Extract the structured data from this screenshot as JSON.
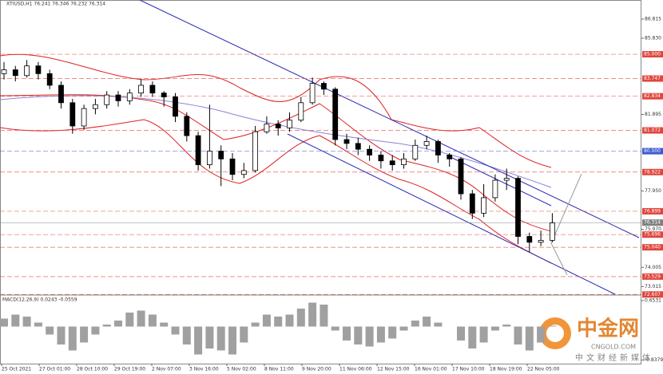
{
  "chart_data": {
    "type": "candlestick",
    "title": "XTIUSD,H1  76.241 76.346 76.232 76.314",
    "ylim": [
      72.7,
      87.8
    ],
    "yticks": [
      86.815,
      {
        "value": 85.83,
        "label": "85.830"
      },
      81.895,
      {
        "value": 77.95,
        "label": "77.950"
      },
      {
        "value": 75.97,
        "label": "75.970"
      },
      74.005,
      73.015
    ],
    "levels": [
      {
        "value": 85,
        "label": "85.000",
        "color": "#e0463c"
      },
      {
        "value": 83.747,
        "label": "83.747",
        "color": "#e0463c"
      },
      {
        "value": 82.834,
        "label": "82.834",
        "color": "#e0463c"
      },
      {
        "value": 81.072,
        "label": "81.072",
        "color": "#e0463c"
      },
      {
        "value": 80,
        "label": "80.000",
        "color": "#3c5ad2"
      },
      {
        "value": 78.922,
        "label": "78.922",
        "color": "#e0463c"
      },
      {
        "value": 76.899,
        "label": "76.899",
        "color": "#e0463c"
      },
      {
        "value": 76.314,
        "label": "76.314",
        "color": "#808080"
      },
      {
        "value": 75.696,
        "label": "75.696",
        "color": "#e0463c"
      },
      {
        "value": 75.04,
        "label": "75.040",
        "color": "#e0463c"
      },
      {
        "value": 73.529,
        "label": "73.529",
        "color": "#e0463c"
      },
      {
        "value": 72.607,
        "label": "72.607",
        "color": "#e0463c"
      }
    ],
    "open": [
      84.0,
      84.2,
      83.9,
      84.4,
      84.0,
      83.4,
      82.5,
      81.3,
      82.2,
      82.4,
      82.9,
      82.6,
      83.0,
      83.4,
      83.0,
      82.8,
      81.8,
      80.8,
      79.3,
      80.0,
      79.6,
      78.8,
      79.0,
      81.0,
      81.4,
      81.2,
      81.6,
      82.5,
      83.5,
      83.2,
      80.6,
      80.4,
      80.1,
      79.8,
      79.5,
      79.3,
      79.6,
      80.3,
      80.5,
      79.8,
      79.6,
      77.8,
      76.8,
      77.6,
      78.5,
      78.6,
      75.6,
      75.3,
      75.4
    ],
    "high": [
      84.6,
      84.4,
      84.7,
      84.6,
      84.2,
      83.6,
      82.7,
      82.4,
      82.7,
      83.1,
      83.1,
      83.2,
      83.7,
      83.6,
      83.1,
      83.0,
      82.0,
      81.0,
      82.4,
      80.3,
      79.9,
      79.4,
      81.3,
      81.8,
      81.6,
      82.0,
      82.8,
      83.8,
      83.6,
      83.3,
      80.9,
      80.7,
      80.3,
      80.0,
      79.8,
      79.9,
      80.6,
      80.8,
      80.6,
      79.9,
      79.7,
      78.0,
      78.3,
      78.8,
      79.1,
      78.7,
      75.8,
      75.9,
      76.8
    ],
    "low": [
      83.7,
      83.6,
      83.8,
      83.7,
      83.2,
      82.2,
      80.9,
      81.1,
      81.9,
      82.2,
      82.3,
      82.4,
      82.8,
      82.8,
      82.3,
      81.5,
      80.5,
      79.0,
      79.1,
      78.2,
      78.5,
      78.6,
      78.9,
      80.9,
      80.8,
      81.0,
      81.5,
      82.4,
      82.9,
      80.3,
      80.1,
      79.8,
      79.5,
      79.1,
      79.0,
      79.1,
      79.5,
      80.1,
      79.4,
      79.2,
      77.5,
      76.5,
      76.6,
      77.4,
      78.0,
      75.2,
      74.8,
      75.1,
      75.3
    ],
    "close": [
      84.2,
      83.9,
      84.4,
      84.0,
      83.4,
      82.5,
      81.3,
      82.2,
      82.4,
      82.9,
      82.6,
      83.0,
      83.4,
      83.0,
      82.8,
      81.8,
      80.8,
      79.3,
      80.0,
      79.6,
      78.8,
      79.0,
      81.0,
      81.4,
      81.2,
      81.6,
      82.5,
      83.5,
      83.2,
      80.6,
      80.4,
      80.1,
      79.8,
      79.5,
      79.3,
      79.6,
      80.3,
      80.5,
      79.8,
      79.6,
      77.8,
      76.8,
      77.6,
      78.5,
      78.6,
      75.6,
      75.3,
      75.4,
      76.3
    ],
    "categories": [
      "25 Oct 2021",
      "27 Oct 01:00",
      "28 Oct 10:00",
      "29 Oct 19:00",
      "2 Nov 07:00",
      "3 Nov 16:00",
      "5 Nov 02:00",
      "8 Nov 11:00",
      "9 Nov 20:00",
      "11 Nov 06:00",
      "12 Nov 15:00",
      "16 Nov 01:00",
      "17 Nov 10:00",
      "18 Nov 19:00",
      "22 Nov 05:00"
    ],
    "macd": {
      "title": "MACD(12,26,9) 0.0243 -0.0559",
      "ylim": [
        -0.93,
        0.75
      ],
      "yticks": [
        0.6531,
        -0.8379
      ],
      "color": "#a0a0a0",
      "values": [
        0.2,
        0.3,
        0.25,
        0.1,
        -0.2,
        -0.45,
        -0.6,
        -0.4,
        -0.2,
        0.05,
        0.15,
        0.35,
        0.4,
        0.3,
        0.1,
        -0.2,
        -0.45,
        -0.7,
        -0.55,
        -0.6,
        -0.7,
        -0.4,
        0.1,
        0.3,
        0.25,
        0.3,
        0.45,
        0.6,
        0.55,
        -0.1,
        -0.35,
        -0.45,
        -0.5,
        -0.4,
        -0.3,
        -0.1,
        0.15,
        0.25,
        0.1,
        0.0,
        -0.35,
        -0.55,
        -0.4,
        -0.1,
        0.05,
        -0.45,
        -0.6,
        -0.4,
        0.02
      ]
    }
  },
  "watermark": {
    "brand": "中金网",
    "site": "CNGOLD.COM",
    "slogan": "中文财经新媒体"
  }
}
